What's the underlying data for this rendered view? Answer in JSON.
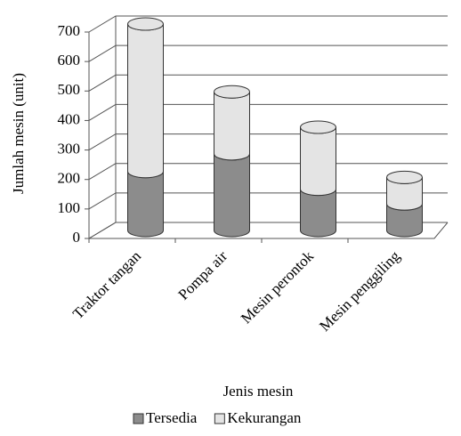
{
  "chart_data": {
    "type": "bar",
    "stacked": true,
    "shape": "cylinder",
    "x_label": "Jenis mesin",
    "y_label": "Jumlah mesin (unit)",
    "categories": [
      "Traktor tangan",
      "Pompa air",
      "Mesin perontok",
      "Mesin penggiling"
    ],
    "series": [
      {
        "name": "Tersedia",
        "color": "#8c8c8c",
        "values": [
          200,
          260,
          140,
          90
        ]
      },
      {
        "name": "Kekurangan",
        "color": "#e4e4e4",
        "values": [
          500,
          210,
          210,
          90
        ]
      }
    ],
    "ylim": [
      0,
      700
    ],
    "yticks": [
      0,
      100,
      200,
      300,
      400,
      500,
      600,
      700
    ],
    "grid": true,
    "legend": "bottom"
  }
}
